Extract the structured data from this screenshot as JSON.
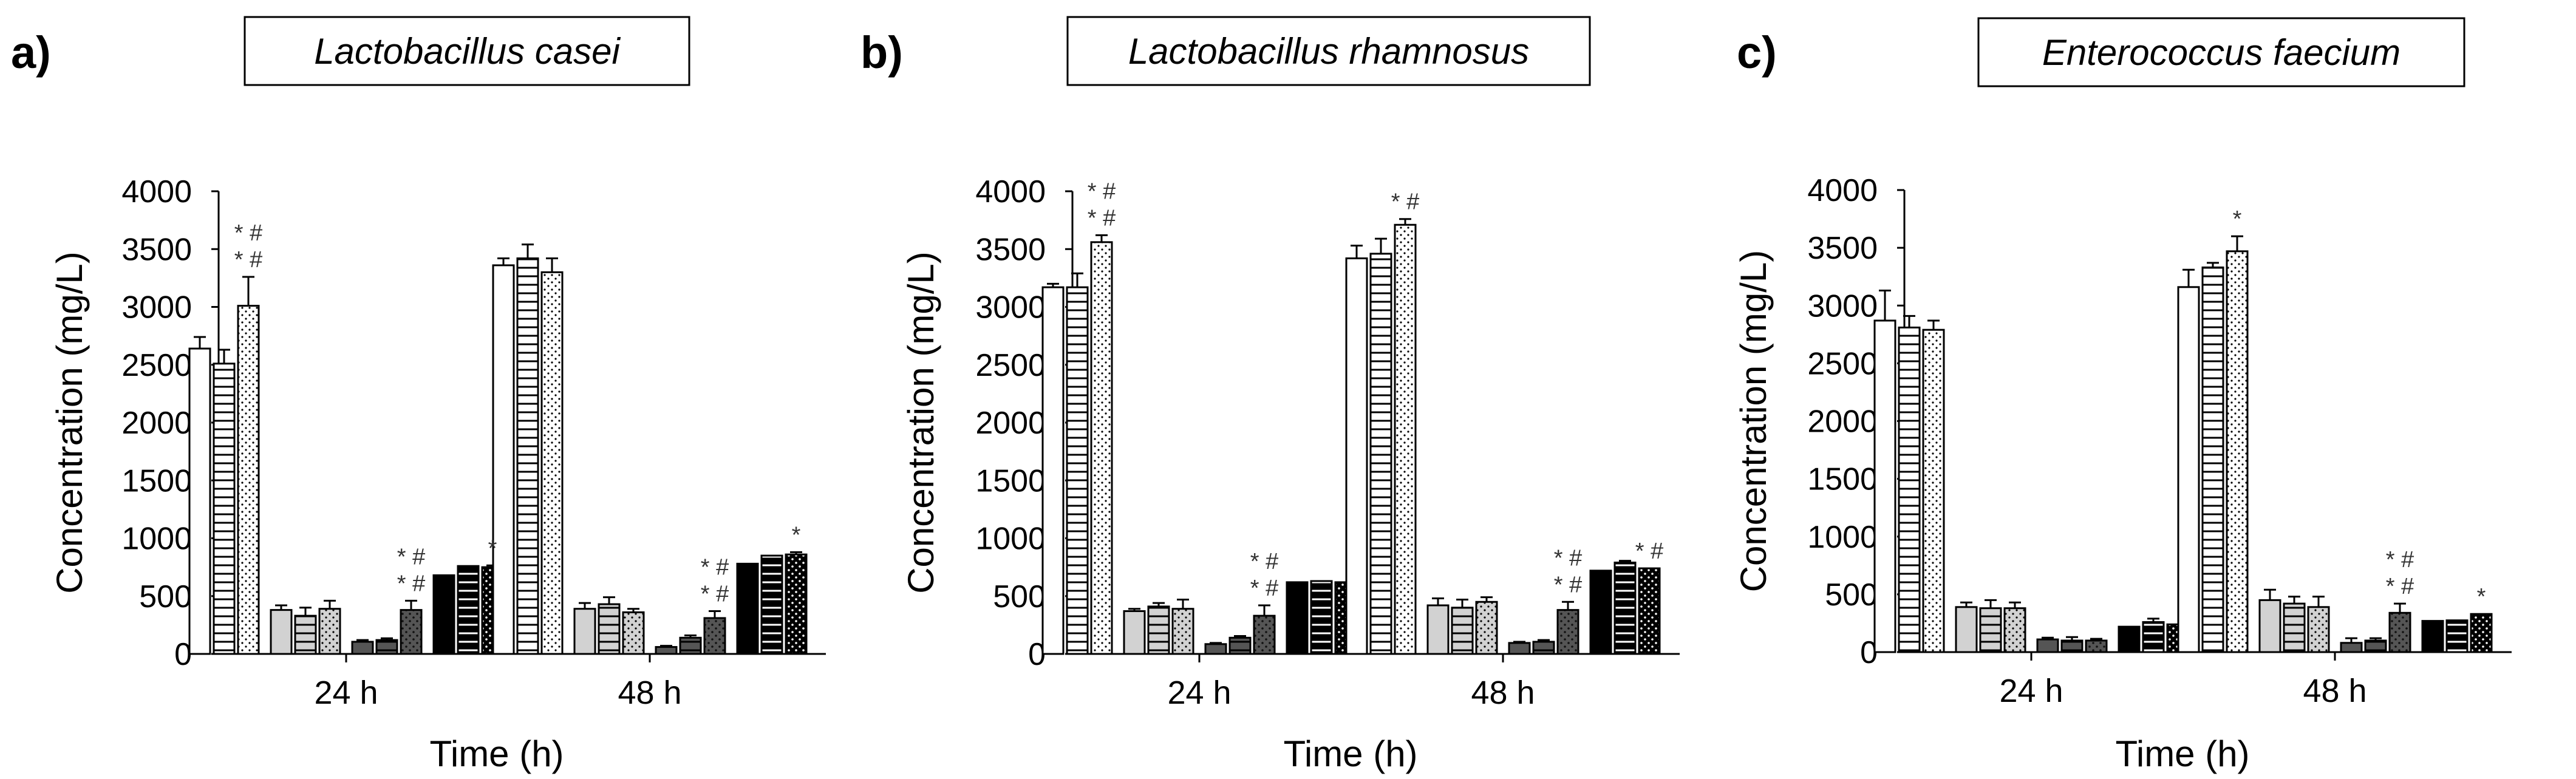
{
  "chart_data": [
    {
      "panel": "a)",
      "type": "bar",
      "title": "Lactobacillus casei",
      "xlabel": "Time (h)",
      "ylabel": "Concentration (mg/L)",
      "ylim": [
        0,
        4000
      ],
      "yticks": [
        0,
        500,
        1000,
        1500,
        2000,
        2500,
        3000,
        3500,
        4000
      ],
      "categories": [
        "24 h",
        "48 h"
      ],
      "series": [
        {
          "name": "s1",
          "style": "white-plain",
          "values": [
            2640,
            3360
          ],
          "errors": [
            100,
            60
          ]
        },
        {
          "name": "s2",
          "style": "white-hstripe",
          "values": [
            2510,
            3420
          ],
          "errors": [
            120,
            120
          ]
        },
        {
          "name": "s3",
          "style": "white-dots",
          "values": [
            3010,
            3300
          ],
          "errors": [
            250,
            120
          ]
        },
        {
          "name": "s4",
          "style": "light-plain",
          "values": [
            380,
            390
          ],
          "errors": [
            40,
            50
          ]
        },
        {
          "name": "s5",
          "style": "light-hstripe",
          "values": [
            330,
            430
          ],
          "errors": [
            70,
            60
          ]
        },
        {
          "name": "s6",
          "style": "light-dots",
          "values": [
            390,
            360
          ],
          "errors": [
            70,
            30
          ]
        },
        {
          "name": "s7",
          "style": "dark-plain",
          "values": [
            105,
            60
          ],
          "errors": [
            15,
            10
          ]
        },
        {
          "name": "s8",
          "style": "dark-hstripe",
          "values": [
            120,
            140
          ],
          "errors": [
            15,
            20
          ]
        },
        {
          "name": "s9",
          "style": "dark-dots",
          "values": [
            380,
            310
          ],
          "errors": [
            80,
            60
          ]
        },
        {
          "name": "s10",
          "style": "black-plain",
          "values": [
            680,
            780
          ],
          "errors": [
            0,
            0
          ]
        },
        {
          "name": "s11",
          "style": "black-hstripe",
          "values": [
            760,
            850
          ],
          "errors": [
            0,
            0
          ]
        },
        {
          "name": "s12",
          "style": "black-dots",
          "values": [
            750,
            860
          ],
          "errors": [
            15,
            20
          ]
        }
      ],
      "annotations": [
        {
          "category": "24 h",
          "series": "s3",
          "lines": [
            "* #",
            "* #"
          ]
        },
        {
          "category": "24 h",
          "series": "s9",
          "lines": [
            "* #",
            "* #"
          ]
        },
        {
          "category": "24 h",
          "series": "s12",
          "lines": [
            "*"
          ]
        },
        {
          "category": "48 h",
          "series": "s9",
          "lines": [
            "* #",
            "* #"
          ]
        },
        {
          "category": "48 h",
          "series": "s12",
          "lines": [
            "*"
          ]
        }
      ]
    },
    {
      "panel": "b)",
      "type": "bar",
      "title": "Lactobacillus rhamnosus",
      "xlabel": "Time (h)",
      "ylabel": "Concentration (mg/L)",
      "ylim": [
        0,
        4000
      ],
      "yticks": [
        0,
        500,
        1000,
        1500,
        2000,
        2500,
        3000,
        3500,
        4000
      ],
      "categories": [
        "24 h",
        "48 h"
      ],
      "series": [
        {
          "name": "s1",
          "style": "white-plain",
          "values": [
            3170,
            3420
          ],
          "errors": [
            30,
            110
          ]
        },
        {
          "name": "s2",
          "style": "white-hstripe",
          "values": [
            3170,
            3460
          ],
          "errors": [
            120,
            130
          ]
        },
        {
          "name": "s3",
          "style": "white-dots",
          "values": [
            3560,
            3710
          ],
          "errors": [
            60,
            50
          ]
        },
        {
          "name": "s4",
          "style": "light-plain",
          "values": [
            370,
            420
          ],
          "errors": [
            20,
            60
          ]
        },
        {
          "name": "s5",
          "style": "light-hstripe",
          "values": [
            410,
            400
          ],
          "errors": [
            30,
            70
          ]
        },
        {
          "name": "s6",
          "style": "light-dots",
          "values": [
            390,
            450
          ],
          "errors": [
            80,
            40
          ]
        },
        {
          "name": "s7",
          "style": "dark-plain",
          "values": [
            85,
            95
          ],
          "errors": [
            10,
            10
          ]
        },
        {
          "name": "s8",
          "style": "dark-hstripe",
          "values": [
            140,
            105
          ],
          "errors": [
            15,
            15
          ]
        },
        {
          "name": "s9",
          "style": "dark-dots",
          "values": [
            330,
            380
          ],
          "errors": [
            90,
            70
          ]
        },
        {
          "name": "s10",
          "style": "black-plain",
          "values": [
            620,
            720
          ],
          "errors": [
            0,
            0
          ]
        },
        {
          "name": "s11",
          "style": "black-hstripe",
          "values": [
            630,
            790
          ],
          "errors": [
            0,
            15
          ]
        },
        {
          "name": "s12",
          "style": "black-dots",
          "values": [
            620,
            740
          ],
          "errors": [
            0,
            0
          ]
        }
      ],
      "annotations": [
        {
          "category": "24 h",
          "series": "s3",
          "lines": [
            "* #",
            "* #"
          ]
        },
        {
          "category": "24 h",
          "series": "s9",
          "lines": [
            "* #",
            "* #"
          ]
        },
        {
          "category": "48 h",
          "series": "s3",
          "lines": [
            "* #"
          ]
        },
        {
          "category": "48 h",
          "series": "s9",
          "lines": [
            "* #",
            "* #"
          ]
        },
        {
          "category": "48 h",
          "series": "s12",
          "lines": [
            "* #"
          ]
        }
      ]
    },
    {
      "panel": "c)",
      "type": "bar",
      "title": "Enterococcus faecium",
      "xlabel": "Time (h)",
      "ylabel": "Concentration (mg/L)",
      "ylim": [
        0,
        4000
      ],
      "yticks": [
        0,
        500,
        1000,
        1500,
        2000,
        2500,
        3000,
        3500,
        4000
      ],
      "categories": [
        "24 h",
        "48 h"
      ],
      "series": [
        {
          "name": "s1",
          "style": "white-plain",
          "values": [
            2870,
            3160
          ],
          "errors": [
            260,
            150
          ]
        },
        {
          "name": "s2",
          "style": "white-hstripe",
          "values": [
            2810,
            3330
          ],
          "errors": [
            100,
            40
          ]
        },
        {
          "name": "s3",
          "style": "white-dots",
          "values": [
            2790,
            3470
          ],
          "errors": [
            80,
            130
          ]
        },
        {
          "name": "s4",
          "style": "light-plain",
          "values": [
            390,
            450
          ],
          "errors": [
            40,
            90
          ]
        },
        {
          "name": "s5",
          "style": "light-hstripe",
          "values": [
            380,
            420
          ],
          "errors": [
            70,
            60
          ]
        },
        {
          "name": "s6",
          "style": "light-dots",
          "values": [
            380,
            390
          ],
          "errors": [
            50,
            90
          ]
        },
        {
          "name": "s7",
          "style": "dark-plain",
          "values": [
            110,
            80
          ],
          "errors": [
            15,
            40
          ]
        },
        {
          "name": "s8",
          "style": "dark-hstripe",
          "values": [
            100,
            100
          ],
          "errors": [
            30,
            20
          ]
        },
        {
          "name": "s9",
          "style": "dark-dots",
          "values": [
            100,
            340
          ],
          "errors": [
            15,
            80
          ]
        },
        {
          "name": "s10",
          "style": "black-plain",
          "values": [
            220,
            270
          ],
          "errors": [
            0,
            0
          ]
        },
        {
          "name": "s11",
          "style": "black-hstripe",
          "values": [
            260,
            275
          ],
          "errors": [
            30,
            0
          ]
        },
        {
          "name": "s12",
          "style": "black-dots",
          "values": [
            240,
            330
          ],
          "errors": [
            0,
            0
          ]
        }
      ],
      "annotations": [
        {
          "category": "48 h",
          "series": "s3",
          "lines": [
            "*"
          ]
        },
        {
          "category": "48 h",
          "series": "s9",
          "lines": [
            "* #",
            "* #"
          ]
        },
        {
          "category": "48 h",
          "series": "s12",
          "lines": [
            "*"
          ]
        }
      ]
    }
  ]
}
